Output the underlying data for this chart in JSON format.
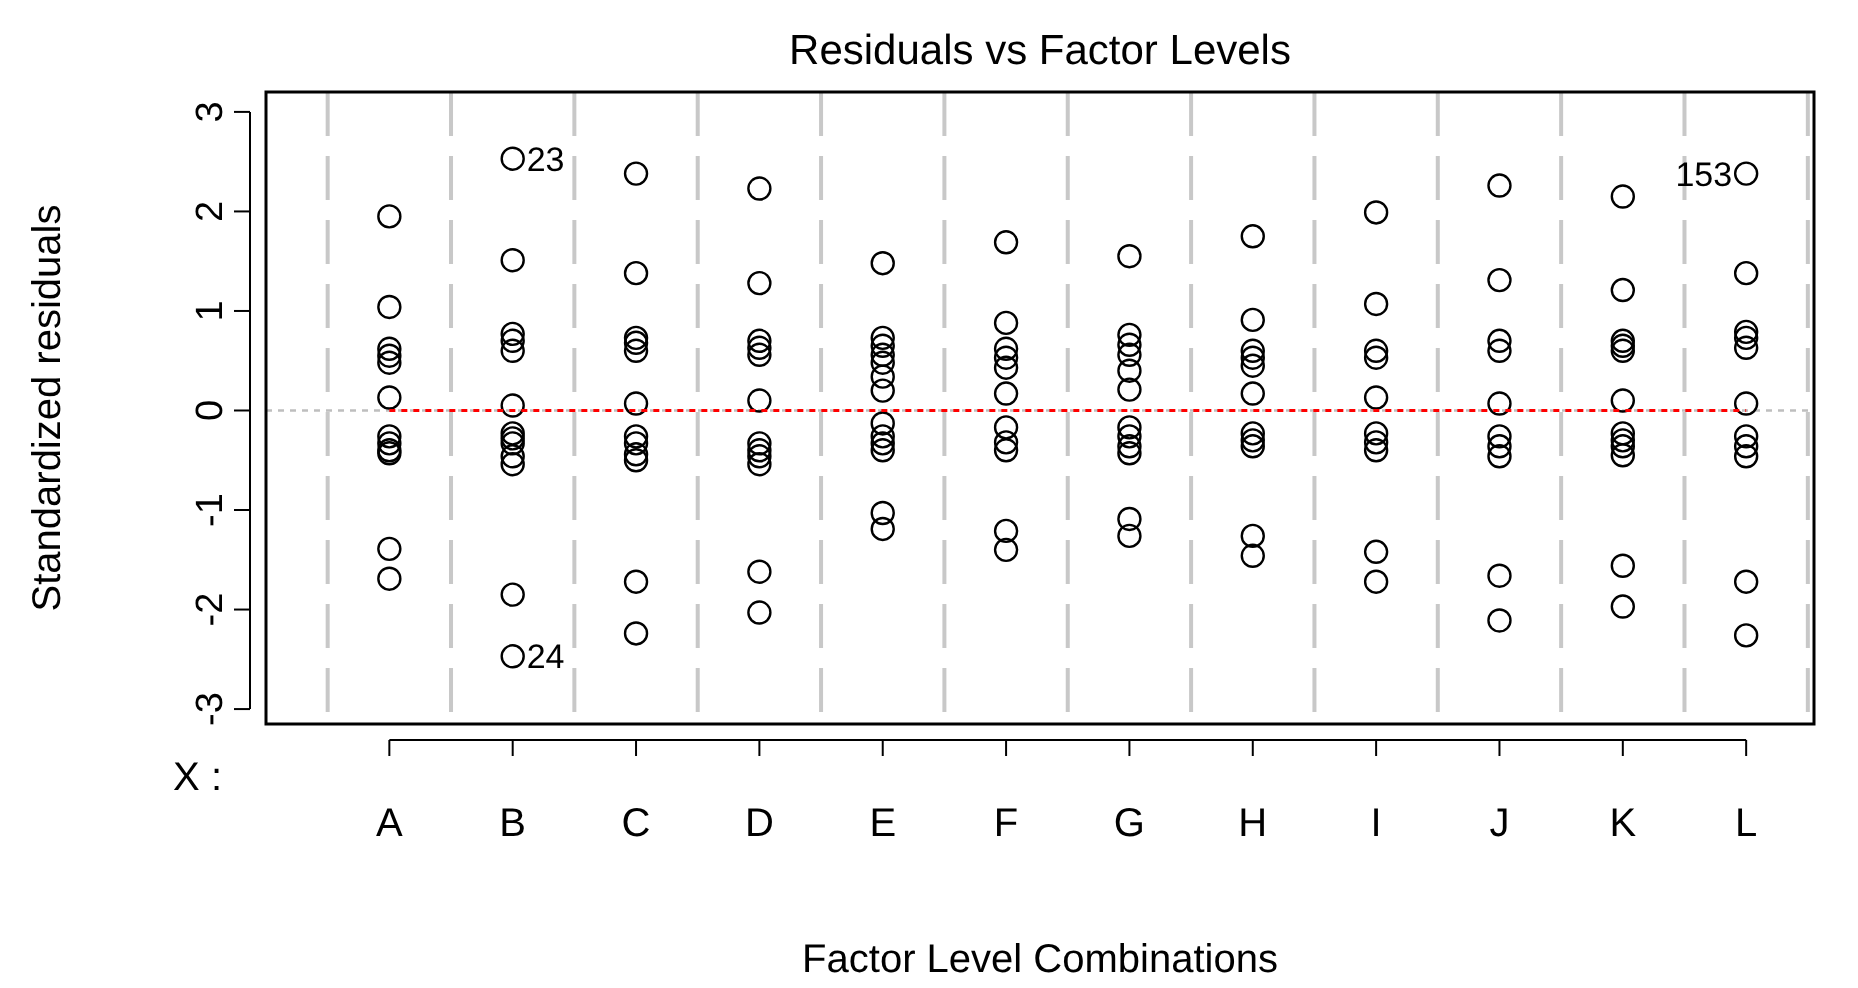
{
  "chart_data": {
    "type": "scatter",
    "title": "Residuals vs Factor Levels",
    "xlabel": "Factor Level Combinations",
    "ylabel": "Standardized residuals",
    "categories": [
      "A",
      "B",
      "C",
      "D",
      "E",
      "F",
      "G",
      "H",
      "I",
      "J",
      "K",
      "L"
    ],
    "ylim": [
      -3.15,
      3.2
    ],
    "yticks": [
      -3,
      -2,
      -1,
      0,
      1,
      2,
      3
    ],
    "grid": "x",
    "marker": "circle",
    "ref_lines": [
      {
        "axis": "y",
        "value": 0,
        "color": "#bebebe",
        "line_style": "dotted"
      }
    ],
    "annotations": [
      "X :",
      {
        "text": "23",
        "x": "B",
        "y": 2.53
      },
      {
        "text": "24",
        "x": "B",
        "y": -2.47
      },
      {
        "text": "153",
        "x": "L",
        "y": 2.38
      }
    ],
    "series": [
      {
        "color": "#000000",
        "x": [
          "A",
          "A",
          "A",
          "A",
          "A",
          "A",
          "A",
          "A",
          "A",
          "A",
          "A",
          "A",
          "B",
          "B",
          "B",
          "B",
          "B",
          "B",
          "B",
          "B",
          "B",
          "B",
          "B",
          "B",
          "B",
          "C",
          "C",
          "C",
          "C",
          "C",
          "C",
          "C",
          "C",
          "C",
          "C",
          "C",
          "C",
          "D",
          "D",
          "D",
          "D",
          "D",
          "D",
          "D",
          "D",
          "D",
          "D",
          "D",
          "D",
          "E",
          "E",
          "E",
          "E",
          "E",
          "E",
          "E",
          "E",
          "E",
          "E",
          "E",
          "E",
          "E",
          "F",
          "F",
          "F",
          "F",
          "F",
          "F",
          "F",
          "F",
          "F",
          "F",
          "F",
          "G",
          "G",
          "G",
          "G",
          "G",
          "G",
          "G",
          "G",
          "G",
          "G",
          "G",
          "G",
          "H",
          "H",
          "H",
          "H",
          "H",
          "H",
          "H",
          "H",
          "H",
          "H",
          "H",
          "I",
          "I",
          "I",
          "I",
          "I",
          "I",
          "I",
          "I",
          "I",
          "I",
          "J",
          "J",
          "J",
          "J",
          "J",
          "J",
          "J",
          "J",
          "J",
          "J",
          "K",
          "K",
          "K",
          "K",
          "K",
          "K",
          "K",
          "K",
          "K",
          "K",
          "K",
          "K",
          "L",
          "L",
          "L",
          "L",
          "L",
          "L",
          "L",
          "L",
          "L",
          "L",
          "L"
        ],
        "values": [
          1.95,
          1.04,
          0.62,
          0.55,
          0.48,
          0.13,
          -0.26,
          -0.33,
          -0.4,
          -0.43,
          -1.39,
          -1.69,
          2.53,
          1.51,
          0.77,
          0.7,
          0.6,
          0.05,
          -0.23,
          -0.28,
          -0.33,
          -0.46,
          -0.54,
          -1.85,
          -2.47,
          2.38,
          1.38,
          0.73,
          0.68,
          0.6,
          0.07,
          -0.26,
          -0.33,
          -0.44,
          -0.5,
          -1.72,
          -2.24,
          2.23,
          1.28,
          0.7,
          0.63,
          0.56,
          0.1,
          -0.33,
          -0.4,
          -0.46,
          -0.54,
          -1.62,
          -2.03,
          1.48,
          0.73,
          0.65,
          0.56,
          0.48,
          0.34,
          0.2,
          -0.13,
          -0.26,
          -0.33,
          -0.4,
          -1.03,
          -1.19,
          1.69,
          0.88,
          0.62,
          0.53,
          0.43,
          0.17,
          -0.17,
          -0.32,
          -0.4,
          -1.21,
          -1.4,
          1.55,
          0.76,
          0.66,
          0.56,
          0.4,
          0.21,
          -0.17,
          -0.26,
          -0.36,
          -0.43,
          -1.09,
          -1.26,
          1.75,
          0.91,
          0.6,
          0.53,
          0.45,
          0.17,
          -0.23,
          -0.3,
          -0.36,
          -1.26,
          -1.46,
          1.99,
          1.07,
          0.6,
          0.53,
          0.13,
          -0.23,
          -0.32,
          -0.4,
          -1.42,
          -1.72,
          2.26,
          1.31,
          0.7,
          0.6,
          0.07,
          -0.26,
          -0.36,
          -0.46,
          -1.66,
          -2.11,
          2.15,
          1.21,
          0.7,
          0.65,
          0.6,
          0.1,
          -0.23,
          -0.3,
          -0.36,
          -0.45,
          -1.56,
          -1.97,
          2.38,
          1.38,
          0.79,
          0.73,
          0.63,
          0.07,
          -0.26,
          -0.36,
          -0.46,
          -1.72,
          -2.26
        ]
      },
      {
        "type": "line",
        "color": "#ff0000",
        "line_style": "dotted",
        "marker": "none",
        "values": [
          0,
          0,
          0,
          0,
          0,
          0,
          0,
          0,
          0,
          0,
          0,
          0
        ]
      }
    ]
  }
}
